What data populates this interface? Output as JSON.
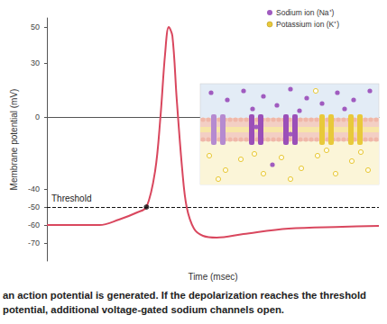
{
  "chart_data": {
    "type": "line",
    "x_label": "Time (msec)",
    "y_label": "Membrane potential (mV)",
    "xlim": [
      0,
      10
    ],
    "ylim": [
      -80,
      55
    ],
    "yticks": [
      -70,
      -60,
      -50,
      -40,
      0,
      30,
      50
    ],
    "tick_labels": "y",
    "grid": false,
    "color": "#d9475e",
    "line_style": "solid",
    "x": [
      0,
      1.58,
      2.17,
      2.72,
      3.0,
      3.26,
      3.42,
      3.56,
      3.67,
      3.78,
      3.91,
      4.08,
      4.21,
      4.43,
      4.7,
      5.11,
      5.92,
      7.28,
      8.9,
      10
    ],
    "values": [
      -60,
      -60,
      -57,
      -53,
      -50,
      -30,
      0,
      35,
      50,
      45,
      10,
      -30,
      -50,
      -62,
      -66,
      -67,
      -65,
      -62,
      -61,
      -60.5
    ],
    "threshold": {
      "label": "Threshold",
      "value": -50,
      "x": 3.0,
      "color": "#111111",
      "line_style": "dashed"
    },
    "key": [
      {
        "label": "Sodium ion (Na⁺)",
        "color": "#a05bbf"
      },
      {
        "label": "Potassium ion (K⁺)",
        "color": "#e8c93a"
      }
    ]
  },
  "caption": "an action potential is generated. If the depolarization reaches the threshold potential, additional voltage-gated sodium channels open."
}
